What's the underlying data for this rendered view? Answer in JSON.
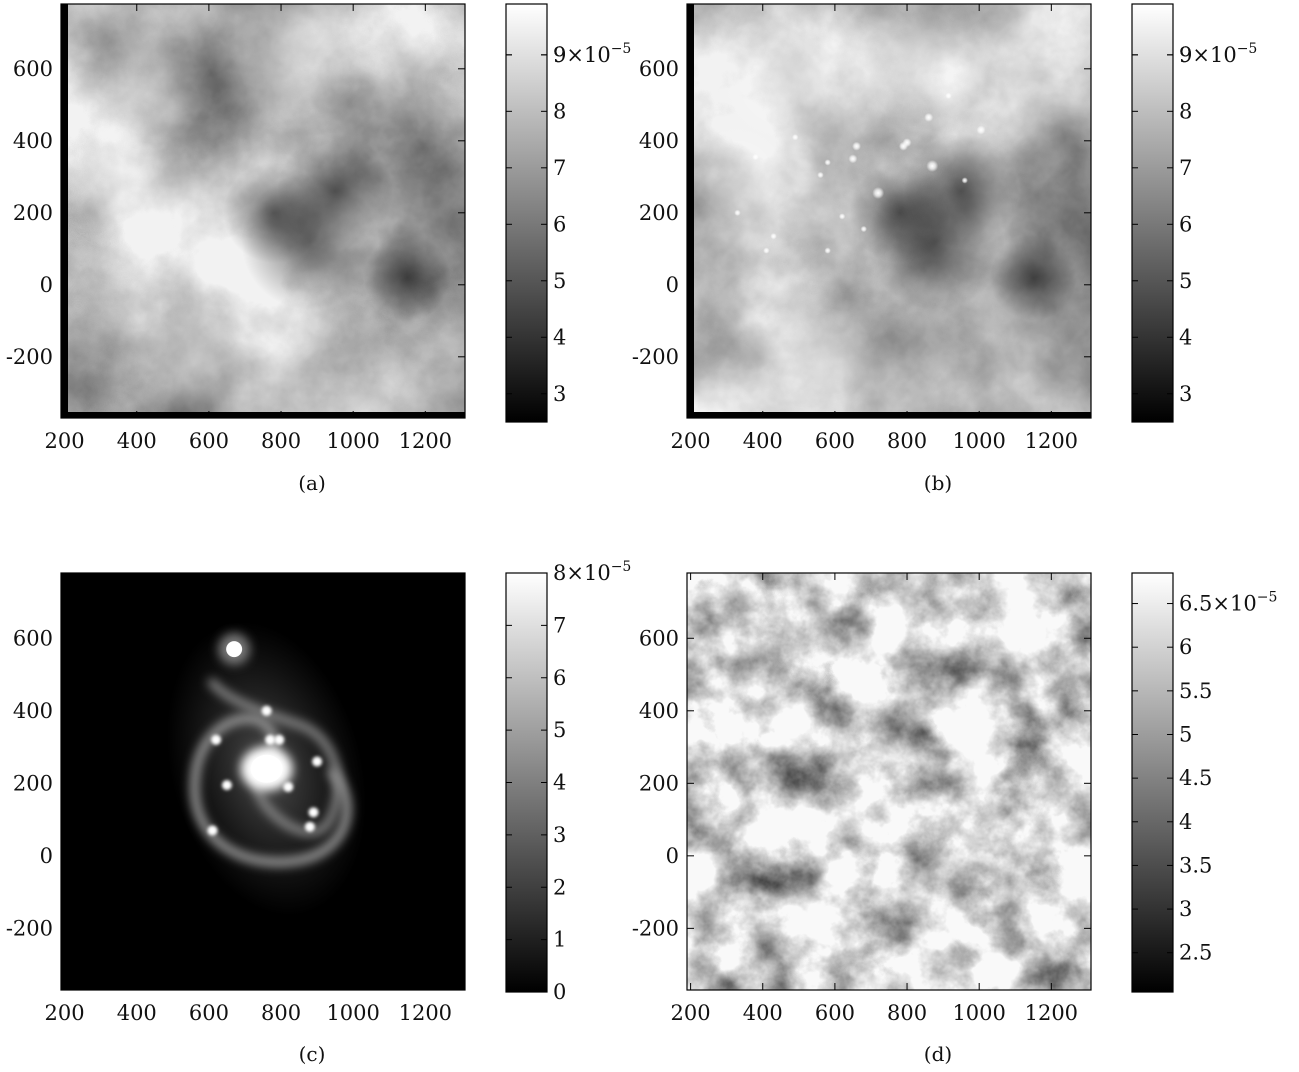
{
  "chart_data": [
    {
      "type": "heatmap",
      "caption": "(a)",
      "xlim": [
        190,
        1310
      ],
      "ylim": [
        -370,
        780
      ],
      "xticks": [
        200,
        400,
        600,
        800,
        1000,
        1200
      ],
      "yticks": [
        -200,
        0,
        200,
        400,
        600
      ],
      "colormap": "gray",
      "colorbar": {
        "min": 2.5e-05,
        "max": 9.9e-05,
        "ticks": [
          "3",
          "4",
          "5",
          "6",
          "7",
          "8",
          "9"
        ],
        "tick_values": [
          3,
          4,
          5,
          6,
          7,
          8,
          9
        ],
        "top_label_base": "9×10",
        "top_label_exp": "−5"
      },
      "image": {
        "kind": "smooth-cloud",
        "description_values": {
          "dark_regions": [
            [
              880,
              120
            ],
            [
              780,
              200
            ],
            [
              950,
              260
            ]
          ],
          "bright_regions": [
            [
              800,
              620
            ],
            [
              450,
              560
            ],
            [
              350,
              300
            ]
          ]
        }
      }
    },
    {
      "type": "heatmap",
      "caption": "(b)",
      "xlim": [
        190,
        1310
      ],
      "ylim": [
        -370,
        780
      ],
      "xticks": [
        200,
        400,
        600,
        800,
        1000,
        1200
      ],
      "yticks": [
        -200,
        0,
        200,
        400,
        600
      ],
      "colormap": "gray",
      "colorbar": {
        "min": 2.5e-05,
        "max": 9.9e-05,
        "ticks": [
          "3",
          "4",
          "5",
          "6",
          "7",
          "8",
          "9"
        ],
        "tick_values": [
          3,
          4,
          5,
          6,
          7,
          8,
          9
        ],
        "top_label_base": "9×10",
        "top_label_exp": "−5"
      },
      "image": {
        "kind": "smooth-cloud-with-point-sources",
        "point_sources": [
          [
            870,
            330
          ],
          [
            720,
            255
          ],
          [
            790,
            385
          ],
          [
            800,
            395
          ],
          [
            860,
            465
          ],
          [
            1005,
            430
          ],
          [
            660,
            385
          ],
          [
            650,
            350
          ],
          [
            560,
            305
          ],
          [
            580,
            340
          ],
          [
            430,
            135
          ],
          [
            410,
            95
          ],
          [
            580,
            95
          ],
          [
            680,
            155
          ],
          [
            620,
            190
          ],
          [
            380,
            355
          ],
          [
            915,
            525
          ],
          [
            330,
            200
          ],
          [
            490,
            410
          ],
          [
            960,
            290
          ]
        ]
      }
    },
    {
      "type": "heatmap",
      "caption": "(c)",
      "xlim": [
        190,
        1310
      ],
      "ylim": [
        -370,
        780
      ],
      "xticks": [
        200,
        400,
        600,
        800,
        1000,
        1200
      ],
      "yticks": [
        -200,
        0,
        200,
        400,
        600
      ],
      "colormap": "gray",
      "colorbar": {
        "min": 0,
        "max": 8e-05,
        "ticks": [
          "0",
          "1",
          "2",
          "3",
          "4",
          "5",
          "6",
          "7"
        ],
        "tick_values": [
          0,
          1,
          2,
          3,
          4,
          5,
          6,
          7
        ],
        "top_label_base": "8×10",
        "top_label_exp": "−5"
      },
      "image": {
        "kind": "spiral-galaxy",
        "nucleus": [
          760,
          240
        ],
        "companion": [
          670,
          570
        ],
        "knots": [
          [
            620,
            320
          ],
          [
            795,
            320
          ],
          [
            770,
            320
          ],
          [
            890,
            120
          ],
          [
            880,
            80
          ],
          [
            610,
            70
          ],
          [
            650,
            195
          ],
          [
            760,
            400
          ],
          [
            820,
            190
          ],
          [
            900,
            260
          ]
        ]
      }
    },
    {
      "type": "heatmap",
      "caption": "(d)",
      "xlim": [
        190,
        1310
      ],
      "ylim": [
        -370,
        780
      ],
      "xticks": [
        200,
        400,
        600,
        800,
        1000,
        1200
      ],
      "yticks": [
        -200,
        0,
        200,
        400,
        600
      ],
      "colormap": "gray",
      "colorbar": {
        "min": 2.05e-05,
        "max": 6.85e-05,
        "ticks": [
          "2.5",
          "3",
          "3.5",
          "4",
          "4.5",
          "5",
          "5.5",
          "6"
        ],
        "tick_values": [
          2.5,
          3,
          3.5,
          4,
          4.5,
          5,
          5.5,
          6
        ],
        "top_label_base": "6.5×10",
        "top_label_value": 6.5,
        "top_label_exp": "−5"
      },
      "image": {
        "kind": "fine-noise-field"
      }
    }
  ]
}
